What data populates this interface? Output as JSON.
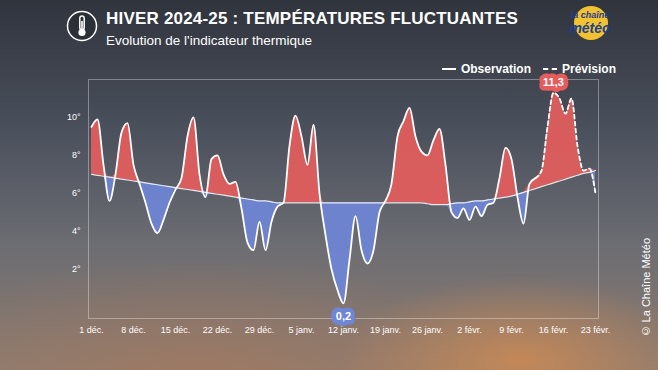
{
  "chart_data": {
    "type": "area",
    "title": "HIVER 2024-25 : TEMPÉRATURES FLUCTUANTES",
    "subtitle": "Evolution de l'indicateur thermique",
    "logo": [
      "la chaîne",
      "météo"
    ],
    "credit": "© La Chaîne Météo",
    "categories": [
      "1 déc.",
      null,
      null,
      null,
      null,
      null,
      null,
      "8 déc.",
      null,
      null,
      null,
      null,
      null,
      null,
      "15 déc.",
      null,
      null,
      null,
      null,
      null,
      null,
      "22 déc.",
      null,
      null,
      null,
      null,
      null,
      null,
      "29 déc.",
      null,
      null,
      null,
      null,
      null,
      null,
      "5 janv.",
      null,
      null,
      null,
      null,
      null,
      null,
      "12 janv.",
      null,
      null,
      null,
      null,
      null,
      null,
      "19 janv.",
      null,
      null,
      null,
      null,
      null,
      null,
      "26 janv.",
      null,
      null,
      null,
      null,
      null,
      null,
      "2 févr.",
      null,
      null,
      null,
      null,
      null,
      null,
      "9 févr.",
      null,
      null,
      null,
      null,
      null,
      null,
      "16 févr.",
      null,
      null,
      null,
      null,
      null,
      null,
      "23 févr."
    ],
    "series": [
      {
        "name": "Observation",
        "color": "#ffffff",
        "line_style": "solid",
        "values": [
          9.5,
          9.9,
          7.5,
          5.6,
          7.0,
          9.2,
          9.7,
          7.5,
          6.5,
          5.5,
          4.4,
          3.9,
          4.6,
          5.5,
          6.2,
          6.8,
          9.0,
          10.0,
          7.0,
          5.8,
          7.8,
          8.0,
          7.0,
          6.5,
          6.6,
          5.2,
          3.4,
          3.0,
          4.5,
          3.0,
          4.5,
          5.3,
          5.5,
          8.5,
          10.1,
          9.0,
          7.5,
          9.6,
          6.0,
          3.8,
          2.0,
          0.9,
          0.2,
          2.5,
          4.8,
          3.0,
          2.3,
          3.0,
          5.0,
          5.6,
          6.5,
          9.0,
          9.8,
          10.5,
          9.0,
          8.2,
          8.0,
          8.8,
          9.4,
          7.5,
          5.0,
          4.7,
          5.2,
          4.6,
          5.3,
          4.8,
          5.4,
          5.5,
          6.8,
          8.4,
          7.8,
          5.8,
          4.4,
          6.5,
          6.8,
          null,
          null,
          null,
          null,
          null,
          null,
          null,
          null,
          null,
          null
        ]
      },
      {
        "name": "Prévision",
        "color": "#ffffff",
        "line_style": "dashed",
        "values": [
          null,
          null,
          null,
          null,
          null,
          null,
          null,
          null,
          null,
          null,
          null,
          null,
          null,
          null,
          null,
          null,
          null,
          null,
          null,
          null,
          null,
          null,
          null,
          null,
          null,
          null,
          null,
          null,
          null,
          null,
          null,
          null,
          null,
          null,
          null,
          null,
          null,
          null,
          null,
          null,
          null,
          null,
          null,
          null,
          null,
          null,
          null,
          null,
          null,
          null,
          null,
          null,
          null,
          null,
          null,
          null,
          null,
          null,
          null,
          null,
          null,
          null,
          null,
          null,
          null,
          null,
          null,
          null,
          null,
          null,
          null,
          null,
          null,
          null,
          6.8,
          7.2,
          9.5,
          11.3,
          11.0,
          10.2,
          11.0,
          8.5,
          7.2,
          7.3,
          6.0
        ]
      }
    ],
    "reference": [
      7.0,
      6.95,
      6.9,
      6.85,
      6.8,
      6.75,
      6.7,
      6.65,
      6.6,
      6.55,
      6.5,
      6.45,
      6.4,
      6.35,
      6.3,
      6.25,
      6.2,
      6.15,
      6.1,
      6.05,
      6.0,
      5.95,
      5.9,
      5.85,
      5.8,
      5.75,
      5.7,
      5.65,
      5.6,
      5.6,
      5.55,
      5.5,
      5.5,
      5.5,
      5.5,
      5.5,
      5.5,
      5.5,
      5.5,
      5.5,
      5.5,
      5.5,
      5.5,
      5.5,
      5.5,
      5.5,
      5.5,
      5.5,
      5.5,
      5.5,
      5.5,
      5.5,
      5.5,
      5.5,
      5.5,
      5.5,
      5.45,
      5.4,
      5.4,
      5.4,
      5.45,
      5.5,
      5.5,
      5.55,
      5.6,
      5.6,
      5.65,
      5.7,
      5.75,
      5.8,
      5.85,
      5.95,
      6.05,
      6.15,
      6.25,
      6.35,
      6.45,
      6.55,
      6.65,
      6.75,
      6.85,
      6.95,
      7.05,
      7.1,
      7.2
    ],
    "colors": [
      "#e45d5c",
      "#6f86d6"
    ],
    "annotations": [
      {
        "text": "11,3",
        "index": 77,
        "value": 11.3
      },
      {
        "text": "0,2",
        "index": 42,
        "value": 0.2
      }
    ],
    "ylim": [
      -0.6,
      12
    ],
    "yticks": [
      {
        "value": 2,
        "label": "2°"
      },
      {
        "value": 4,
        "label": "4°"
      },
      {
        "value": 6,
        "label": "6°"
      },
      {
        "value": 8,
        "label": "8°"
      },
      {
        "value": 10,
        "label": "10°"
      }
    ],
    "grid": false,
    "legend": "top-right"
  }
}
